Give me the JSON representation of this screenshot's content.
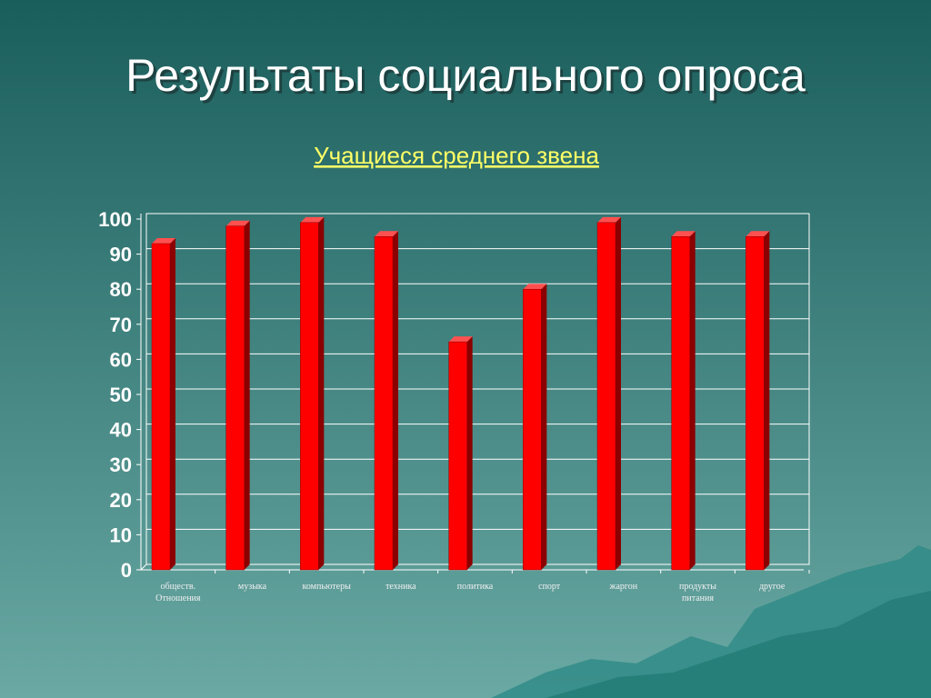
{
  "chart_data": {
    "type": "bar",
    "title": "Результаты социального опроса",
    "subtitle": "Учащиеся среднего звена",
    "categories": [
      "обществ. Отношения",
      "музыка",
      "компьютеры",
      "техника",
      "политика",
      "спорт",
      "жаргон",
      "продукты питания",
      "другое"
    ],
    "values": [
      93,
      98,
      99,
      95,
      65,
      80,
      99,
      95,
      95
    ],
    "color": "#ff0000",
    "ylim": [
      0,
      100
    ],
    "yticks": [
      0,
      10,
      20,
      30,
      40,
      50,
      60,
      70,
      80,
      90,
      100
    ],
    "grid": true
  }
}
